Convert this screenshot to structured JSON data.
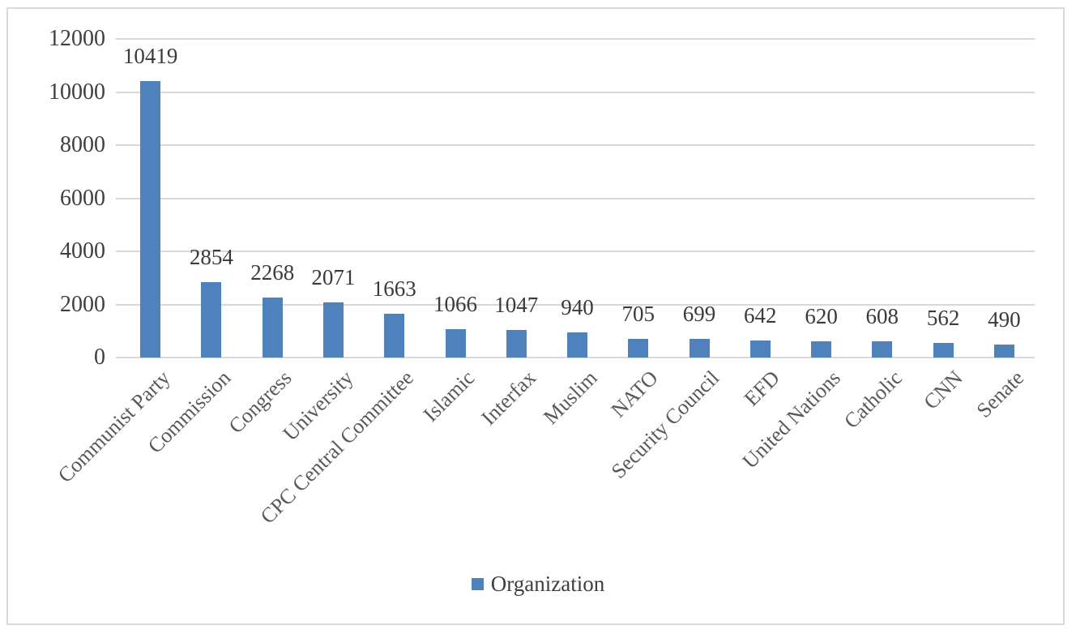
{
  "chart_data": {
    "type": "bar",
    "title": "",
    "xlabel": "",
    "ylabel": "",
    "categories": [
      "Communist Party",
      "Commission",
      "Congress",
      "University",
      "CPC Central Committee",
      "Islamic",
      "Interfax",
      "Muslim",
      "NATO",
      "Security Council",
      "EFD",
      "United Nations",
      "Catholic",
      "CNN",
      "Senate"
    ],
    "values": [
      10419,
      2854,
      2268,
      2071,
      1663,
      1066,
      1047,
      940,
      705,
      699,
      642,
      620,
      608,
      562,
      490
    ],
    "series_name": "Organization",
    "y_ticks": [
      0,
      2000,
      4000,
      6000,
      8000,
      10000,
      12000
    ],
    "ylim": [
      0,
      12000
    ],
    "grid": true,
    "data_labels": true,
    "legend_position": "bottom",
    "bar_color": "#4f81bd",
    "gridline_color": "#d9d9d9",
    "axis_line_color": "#d9d9d9",
    "frame_border_color": "#d9d9d9"
  },
  "legend": {
    "label": "Organization",
    "swatch_color": "#4f81bd"
  }
}
